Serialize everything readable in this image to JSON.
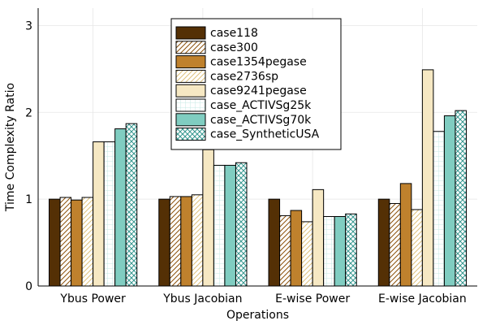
{
  "chart_data": {
    "type": "bar",
    "xlabel": "Operations",
    "ylabel": "Time Complexity Ratio",
    "ylim": [
      0,
      3.2
    ],
    "yticks": [
      0,
      1,
      2,
      3
    ],
    "grid": true,
    "legend_position": "top-center",
    "categories": [
      "Ybus Power",
      "Ybus Jacobian",
      "E-wise Power",
      "E-wise Jacobian"
    ],
    "series": [
      {
        "name": "case118",
        "values": [
          1.0,
          1.0,
          1.0,
          1.0
        ],
        "color": "#543005",
        "pattern": "solid"
      },
      {
        "name": "case300",
        "values": [
          1.02,
          1.03,
          0.81,
          0.95
        ],
        "color": "#8c510a",
        "pattern": "diag-hatch"
      },
      {
        "name": "case1354pegase",
        "values": [
          0.99,
          1.03,
          0.87,
          1.18
        ],
        "color": "#bf812d",
        "pattern": "solid"
      },
      {
        "name": "case2736sp",
        "values": [
          1.02,
          1.05,
          0.74,
          0.88
        ],
        "color": "#dfc27d",
        "pattern": "diag-hatch"
      },
      {
        "name": "case9241pegase",
        "values": [
          1.66,
          1.57,
          1.11,
          2.49
        ],
        "color": "#f6e8c3",
        "pattern": "solid"
      },
      {
        "name": "case_ACTIVSg25k",
        "values": [
          1.66,
          1.39,
          0.8,
          1.78
        ],
        "color": "#c7eae5",
        "pattern": "grid"
      },
      {
        "name": "case_ACTIVSg70k",
        "values": [
          1.81,
          1.39,
          0.8,
          1.96
        ],
        "color": "#80cdc1",
        "pattern": "solid"
      },
      {
        "name": "case_SyntheticUSA",
        "values": [
          1.87,
          1.42,
          0.83,
          2.02
        ],
        "color": "#35978f",
        "pattern": "crosshatch"
      }
    ]
  }
}
